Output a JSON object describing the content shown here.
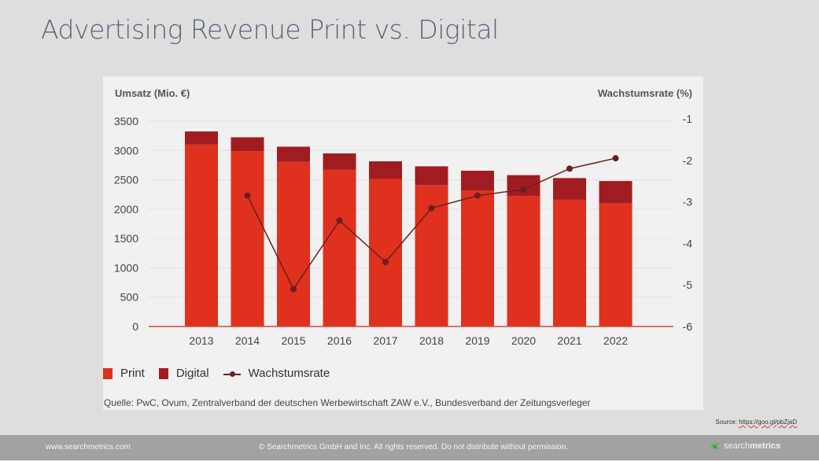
{
  "slide": {
    "title": "Advertising Revenue Print vs. Digital",
    "source_prefix": "Source: ",
    "source_url": "https://goo.gl/pbZjaD"
  },
  "footer": {
    "site": "www.searchmetrics.com",
    "copyright": "© Searchmetrics GmbH and Inc. All rights reserved. Do not distribute without permission.",
    "brand_light": "search",
    "brand_bold": "metrics"
  },
  "colors": {
    "print": "#e0301e",
    "digital": "#a11c20",
    "growth_line": "#6b1f1f",
    "grid": "#e2e2e2",
    "baseline": "#d0493b"
  },
  "chart_data": {
    "type": "bar",
    "stacked": true,
    "title": "",
    "ylabel": "Umsatz (Mio. €)",
    "y2label": "Wachstumsrate (%)",
    "categories": [
      "2013",
      "2014",
      "2015",
      "2016",
      "2017",
      "2018",
      "2019",
      "2020",
      "2021",
      "2022"
    ],
    "series": [
      {
        "name": "Print",
        "type": "bar",
        "axis": "left",
        "values": [
          3100,
          2990,
          2805,
          2670,
          2515,
          2410,
          2315,
          2225,
          2160,
          2100
        ]
      },
      {
        "name": "Digital",
        "type": "bar",
        "axis": "left",
        "values": [
          225,
          235,
          260,
          280,
          300,
          320,
          340,
          355,
          370,
          380
        ]
      },
      {
        "name": "Wachstumsrate",
        "type": "line",
        "axis": "right",
        "values": [
          null,
          -2.85,
          -5.1,
          -3.45,
          -4.45,
          -3.15,
          -2.85,
          -2.7,
          -2.2,
          -1.95
        ]
      }
    ],
    "ylim": [
      0,
      3500
    ],
    "yticks": [
      0,
      500,
      1000,
      1500,
      2000,
      2500,
      3000,
      3500
    ],
    "y2lim": [
      -6,
      -1
    ],
    "y2ticks": [
      -1,
      -2,
      -3,
      -4,
      -5,
      -6
    ],
    "grid": true,
    "legend": {
      "position": "bottom-left",
      "entries": [
        "Print",
        "Digital",
        "Wachstumsrate"
      ]
    },
    "annotation": "Quelle: PwC, Ovum, Zentralverband der deutschen Werbewirtschaft ZAW e.V., Bundesverband der Zeitungsverleger"
  }
}
